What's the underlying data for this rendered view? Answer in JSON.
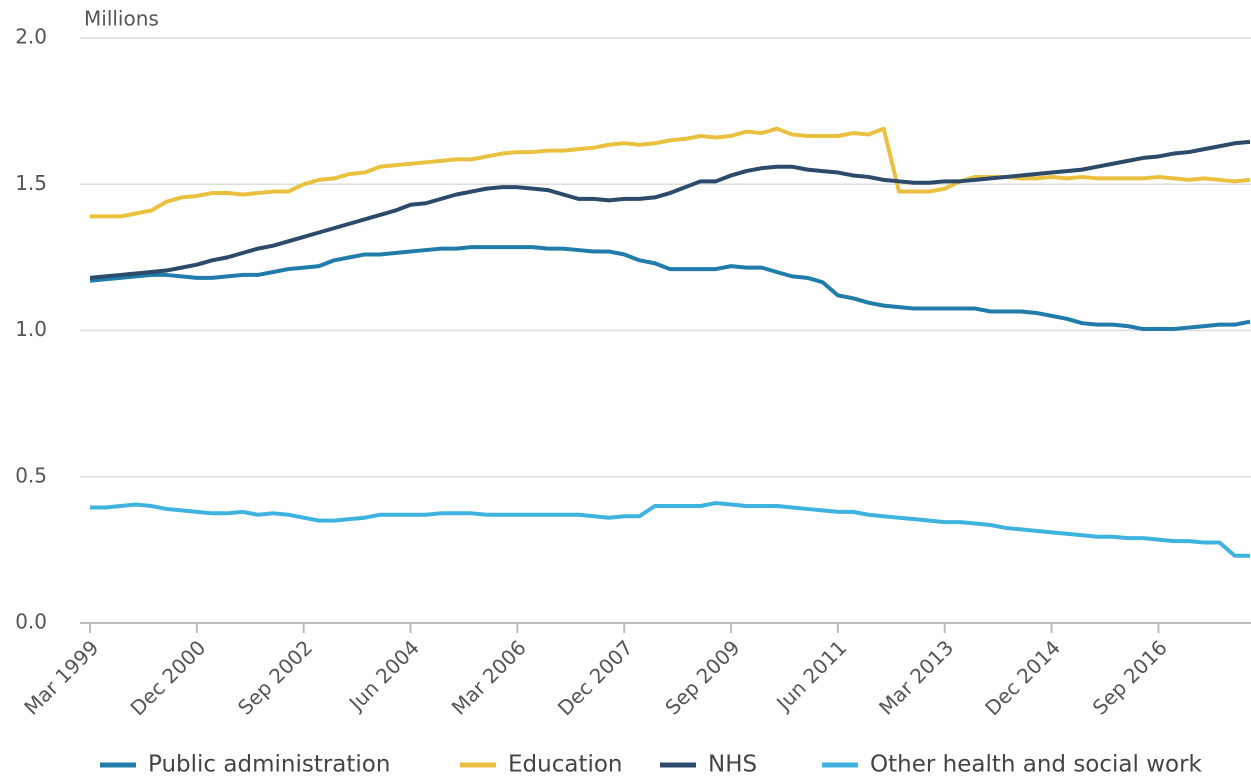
{
  "chart_data": {
    "type": "line",
    "y_label": "Millions",
    "categories": [
      "Mar 1999",
      null,
      null,
      null,
      null,
      null,
      null,
      "Dec 2000",
      null,
      null,
      null,
      null,
      null,
      null,
      "Sep 2002",
      null,
      null,
      null,
      null,
      null,
      null,
      "Jun 2004",
      null,
      null,
      null,
      null,
      null,
      null,
      "Mar 2006",
      null,
      null,
      null,
      null,
      null,
      null,
      "Dec 2007",
      null,
      null,
      null,
      null,
      null,
      null,
      "Sep 2009",
      null,
      null,
      null,
      null,
      null,
      null,
      "Jun 2011",
      null,
      null,
      null,
      null,
      null,
      null,
      "Mar 2013",
      null,
      null,
      null,
      null,
      null,
      null,
      "Dec 2014",
      null,
      null,
      null,
      null,
      null,
      null,
      "Sep 2016",
      null,
      null,
      null,
      null,
      null,
      null
    ],
    "series": [
      {
        "name": "Public administration",
        "color": "#1f7cab",
        "values": [
          1.17,
          1.175,
          1.18,
          1.185,
          1.19,
          1.19,
          1.185,
          1.18,
          1.18,
          1.185,
          1.19,
          1.19,
          1.2,
          1.21,
          1.215,
          1.22,
          1.24,
          1.25,
          1.26,
          1.26,
          1.265,
          1.27,
          1.275,
          1.28,
          1.28,
          1.285,
          1.285,
          1.285,
          1.285,
          1.285,
          1.28,
          1.28,
          1.275,
          1.27,
          1.27,
          1.26,
          1.24,
          1.23,
          1.21,
          1.21,
          1.21,
          1.21,
          1.22,
          1.215,
          1.215,
          1.2,
          1.185,
          1.18,
          1.165,
          1.12,
          1.11,
          1.095,
          1.085,
          1.08,
          1.075,
          1.075,
          1.075,
          1.075,
          1.075,
          1.065,
          1.065,
          1.065,
          1.06,
          1.05,
          1.04,
          1.025,
          1.02,
          1.02,
          1.015,
          1.005,
          1.005,
          1.005,
          1.01,
          1.015,
          1.02,
          1.02,
          1.03
        ]
      },
      {
        "name": "Education",
        "color": "#e9c13f",
        "values": [
          1.39,
          1.39,
          1.39,
          1.4,
          1.41,
          1.44,
          1.455,
          1.46,
          1.47,
          1.47,
          1.465,
          1.47,
          1.475,
          1.475,
          1.5,
          1.515,
          1.52,
          1.535,
          1.54,
          1.56,
          1.565,
          1.57,
          1.575,
          1.58,
          1.585,
          1.585,
          1.595,
          1.605,
          1.61,
          1.61,
          1.615,
          1.615,
          1.62,
          1.625,
          1.635,
          1.64,
          1.635,
          1.64,
          1.65,
          1.655,
          1.665,
          1.66,
          1.665,
          1.68,
          1.675,
          1.69,
          1.67,
          1.665,
          1.665,
          1.665,
          1.675,
          1.67,
          1.69,
          1.475,
          1.475,
          1.475,
          1.485,
          1.51,
          1.525,
          1.525,
          1.525,
          1.52,
          1.52,
          1.525,
          1.52,
          1.525,
          1.52,
          1.52,
          1.52,
          1.52,
          1.525,
          1.52,
          1.515,
          1.52,
          1.515,
          1.51,
          1.515
        ]
      },
      {
        "name": "NHS",
        "color": "#2c4a69",
        "values": [
          1.18,
          1.185,
          1.19,
          1.195,
          1.2,
          1.205,
          1.215,
          1.225,
          1.24,
          1.25,
          1.265,
          1.28,
          1.29,
          1.305,
          1.32,
          1.335,
          1.35,
          1.365,
          1.38,
          1.395,
          1.41,
          1.43,
          1.435,
          1.45,
          1.465,
          1.475,
          1.485,
          1.49,
          1.49,
          1.485,
          1.48,
          1.465,
          1.45,
          1.45,
          1.445,
          1.45,
          1.45,
          1.455,
          1.47,
          1.49,
          1.51,
          1.51,
          1.53,
          1.545,
          1.555,
          1.56,
          1.56,
          1.55,
          1.545,
          1.54,
          1.53,
          1.525,
          1.515,
          1.51,
          1.505,
          1.505,
          1.51,
          1.51,
          1.515,
          1.52,
          1.525,
          1.53,
          1.535,
          1.54,
          1.545,
          1.55,
          1.56,
          1.57,
          1.58,
          1.59,
          1.595,
          1.605,
          1.61,
          1.62,
          1.63,
          1.64,
          1.645
        ]
      },
      {
        "name": "Other health and social work",
        "color": "#3fb3e0",
        "values": [
          0.395,
          0.395,
          0.4,
          0.405,
          0.4,
          0.39,
          0.385,
          0.38,
          0.375,
          0.375,
          0.38,
          0.37,
          0.375,
          0.37,
          0.36,
          0.35,
          0.35,
          0.355,
          0.36,
          0.37,
          0.37,
          0.37,
          0.37,
          0.375,
          0.375,
          0.375,
          0.37,
          0.37,
          0.37,
          0.37,
          0.37,
          0.37,
          0.37,
          0.365,
          0.36,
          0.365,
          0.365,
          0.4,
          0.4,
          0.4,
          0.4,
          0.41,
          0.405,
          0.4,
          0.4,
          0.4,
          0.395,
          0.39,
          0.385,
          0.38,
          0.38,
          0.37,
          0.365,
          0.36,
          0.355,
          0.35,
          0.345,
          0.345,
          0.34,
          0.335,
          0.325,
          0.32,
          0.315,
          0.31,
          0.305,
          0.3,
          0.295,
          0.295,
          0.29,
          0.29,
          0.285,
          0.28,
          0.28,
          0.275,
          0.275,
          0.23,
          0.23
        ]
      }
    ],
    "ylim": [
      0,
      2
    ],
    "yticks": [
      {
        "value": 0,
        "label": "0.0"
      },
      {
        "value": 0.5,
        "label": "0.5"
      },
      {
        "value": 1,
        "label": "1.0"
      },
      {
        "value": 1.5,
        "label": "1.5"
      },
      {
        "value": 2,
        "label": "2.0"
      }
    ],
    "grid": true
  }
}
